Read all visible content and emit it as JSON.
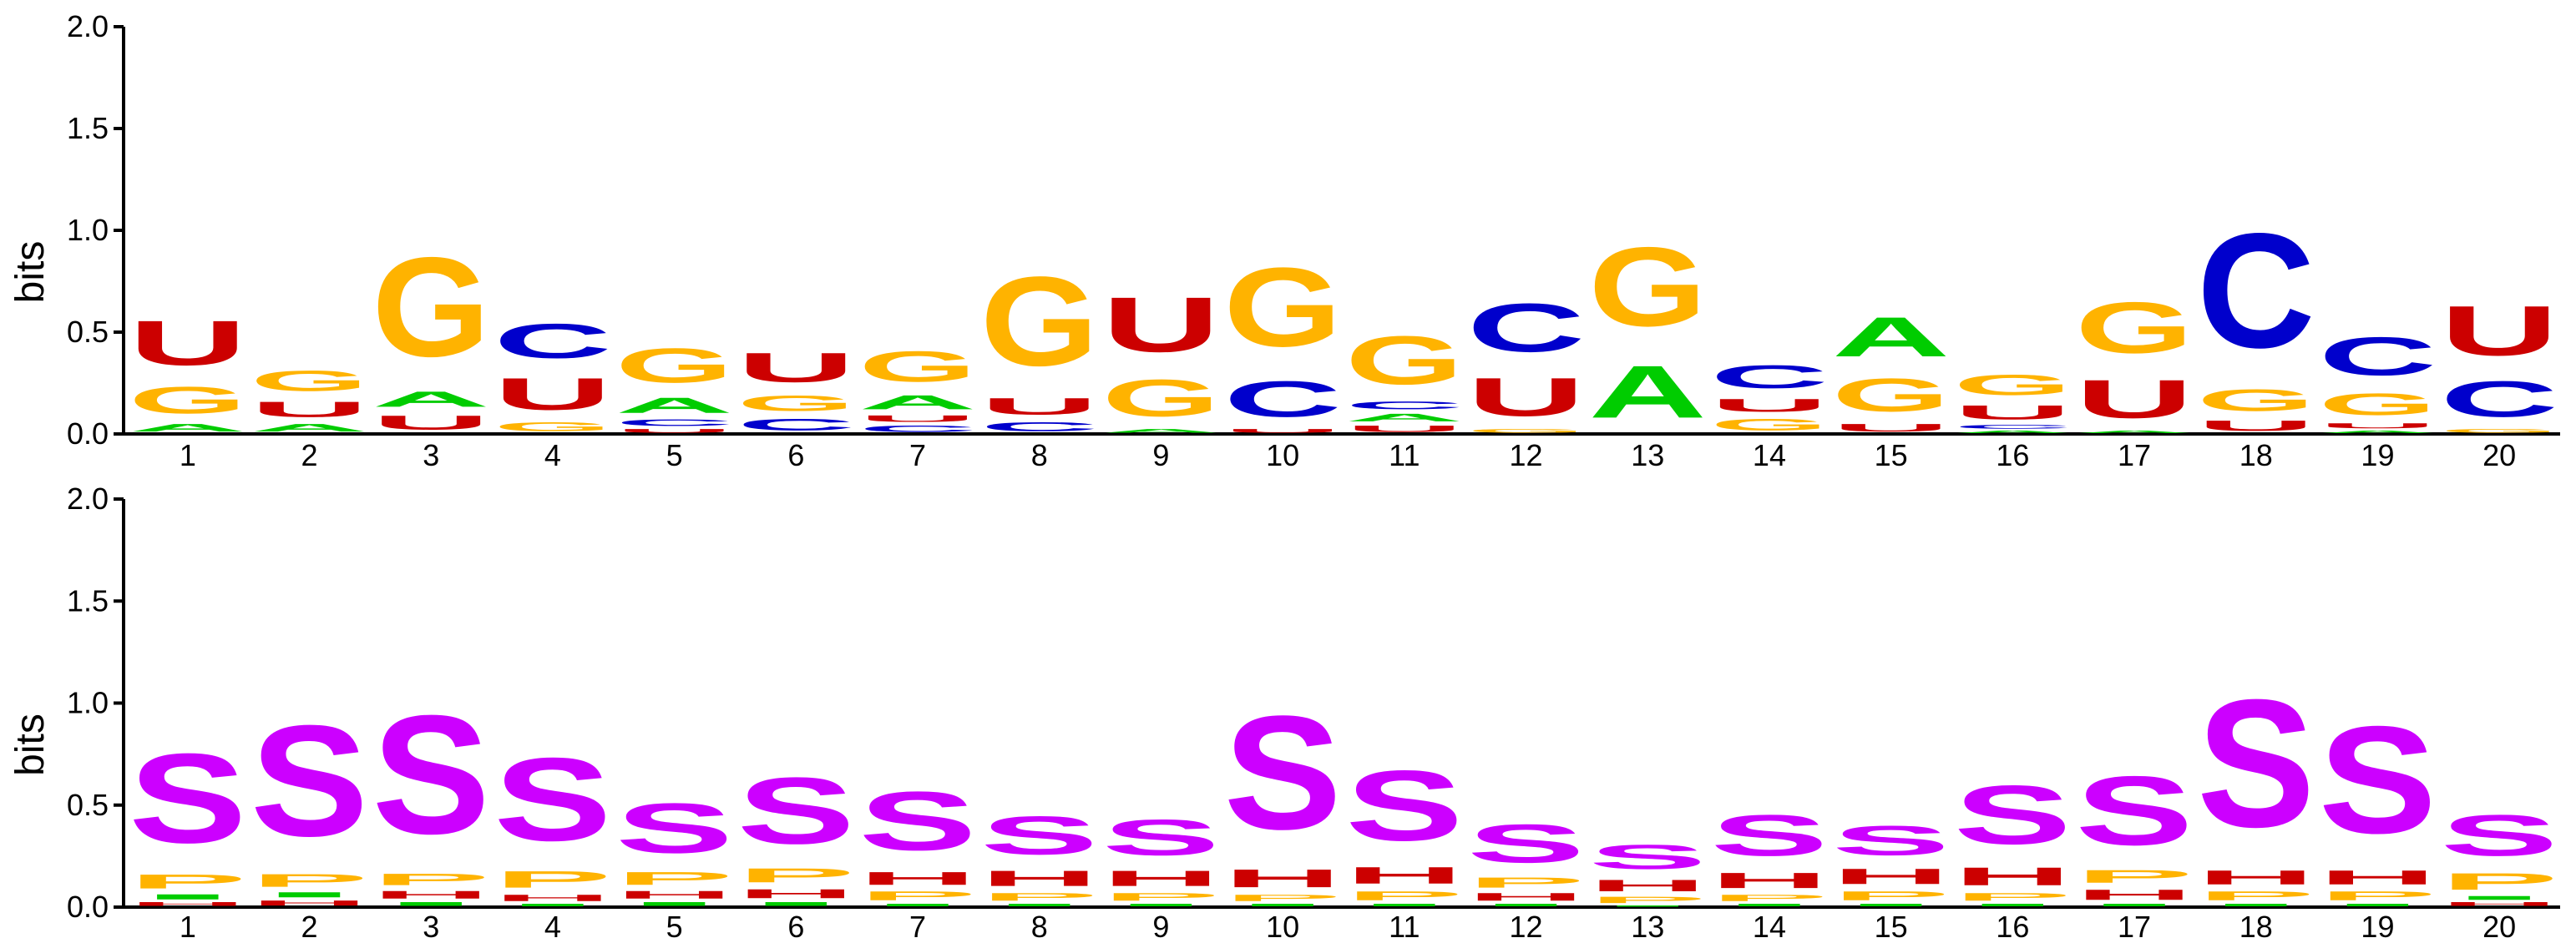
{
  "chart_data": [
    {
      "type": "sequence-logo",
      "ylabel": "bits",
      "ylim": [
        0,
        2.0
      ],
      "yticks": [
        "0.0",
        "0.5",
        "1.0",
        "1.5",
        "2.0"
      ],
      "positions": [
        "1",
        "2",
        "3",
        "4",
        "5",
        "6",
        "7",
        "8",
        "9",
        "10",
        "11",
        "12",
        "13",
        "14",
        "15",
        "16",
        "17",
        "18",
        "19",
        "20"
      ],
      "colors": {
        "A": "#00cc00",
        "C": "#0000cc",
        "G": "#ffb300",
        "U": "#cc0000"
      },
      "stacks": [
        [
          {
            "l": "A",
            "h": 0.06
          },
          {
            "l": "G",
            "h": 0.21
          },
          {
            "l": "U",
            "h": 0.35
          }
        ],
        [
          {
            "l": "A",
            "h": 0.06
          },
          {
            "l": "U",
            "h": 0.12
          },
          {
            "l": "G",
            "h": 0.16
          }
        ],
        [
          {
            "l": "U",
            "h": 0.11
          },
          {
            "l": "A",
            "h": 0.12
          },
          {
            "l": "G",
            "h": 0.78
          }
        ],
        [
          {
            "l": "G",
            "h": 0.07
          },
          {
            "l": "U",
            "h": 0.25
          },
          {
            "l": "C",
            "h": 0.27
          }
        ],
        [
          {
            "l": "U",
            "h": 0.03
          },
          {
            "l": "C",
            "h": 0.05
          },
          {
            "l": "A",
            "h": 0.12
          },
          {
            "l": "G",
            "h": 0.27
          }
        ],
        [
          {
            "l": "C",
            "h": 0.09
          },
          {
            "l": "G",
            "h": 0.12
          },
          {
            "l": "U",
            "h": 0.23
          }
        ],
        [
          {
            "l": "C",
            "h": 0.05
          },
          {
            "l": "U",
            "h": 0.05
          },
          {
            "l": "A",
            "h": 0.11
          },
          {
            "l": "G",
            "h": 0.24
          }
        ],
        [
          {
            "l": "C",
            "h": 0.07
          },
          {
            "l": "U",
            "h": 0.13
          },
          {
            "l": "G",
            "h": 0.7
          }
        ],
        [
          {
            "l": "A",
            "h": 0.03
          },
          {
            "l": "G",
            "h": 0.29
          },
          {
            "l": "U",
            "h": 0.43
          }
        ],
        [
          {
            "l": "U",
            "h": 0.03
          },
          {
            "l": "C",
            "h": 0.28
          },
          {
            "l": "G",
            "h": 0.62
          }
        ],
        [
          {
            "l": "U",
            "h": 0.05
          },
          {
            "l": "A",
            "h": 0.06
          },
          {
            "l": "C",
            "h": 0.06
          },
          {
            "l": "G",
            "h": 0.38
          }
        ],
        [
          {
            "l": "G",
            "h": 0.03
          },
          {
            "l": "U",
            "h": 0.3
          },
          {
            "l": "C",
            "h": 0.38
          }
        ],
        [
          {
            "l": "A",
            "h": 0.41
          },
          {
            "l": "G",
            "h": 0.62
          }
        ],
        [
          {
            "l": "G",
            "h": 0.09
          },
          {
            "l": "U",
            "h": 0.1
          },
          {
            "l": "C",
            "h": 0.18
          }
        ],
        [
          {
            "l": "U",
            "h": 0.06
          },
          {
            "l": "G",
            "h": 0.26
          },
          {
            "l": "A",
            "h": 0.31
          }
        ],
        [
          {
            "l": "A",
            "h": 0.02
          },
          {
            "l": "C",
            "h": 0.03
          },
          {
            "l": "U",
            "h": 0.11
          },
          {
            "l": "G",
            "h": 0.16
          }
        ],
        [
          {
            "l": "A",
            "h": 0.02
          },
          {
            "l": "U",
            "h": 0.3
          },
          {
            "l": "G",
            "h": 0.4
          }
        ],
        [
          {
            "l": "U",
            "h": 0.08
          },
          {
            "l": "G",
            "h": 0.17
          },
          {
            "l": "C",
            "h": 0.9
          }
        ],
        [
          {
            "l": "A",
            "h": 0.02
          },
          {
            "l": "U",
            "h": 0.04
          },
          {
            "l": "G",
            "h": 0.17
          },
          {
            "l": "C",
            "h": 0.3
          }
        ],
        [
          {
            "l": "G",
            "h": 0.03
          },
          {
            "l": "C",
            "h": 0.28
          },
          {
            "l": "U",
            "h": 0.39
          }
        ]
      ]
    },
    {
      "type": "sequence-logo",
      "ylabel": "bits",
      "ylim": [
        0,
        2.0
      ],
      "yticks": [
        "0.0",
        "0.5",
        "1.0",
        "1.5",
        "2.0"
      ],
      "positions": [
        "1",
        "2",
        "3",
        "4",
        "5",
        "6",
        "7",
        "8",
        "9",
        "10",
        "11",
        "12",
        "13",
        "14",
        "15",
        "16",
        "17",
        "18",
        "19",
        "20"
      ],
      "colors": {
        "S": "#cc00ff",
        "P": "#ffb300",
        "H": "#cc0000",
        "I": "#00cc00"
      },
      "stacks": [
        [
          {
            "l": "H",
            "h": 0.03
          },
          {
            "l": "I",
            "h": 0.04
          },
          {
            "l": "P",
            "h": 0.11
          },
          {
            "l": "S",
            "h": 0.7
          }
        ],
        [
          {
            "l": "H",
            "h": 0.04
          },
          {
            "l": "I",
            "h": 0.04
          },
          {
            "l": "P",
            "h": 0.1
          },
          {
            "l": "S",
            "h": 0.87
          }
        ],
        [
          {
            "l": "I",
            "h": 0.03
          },
          {
            "l": "H",
            "h": 0.06
          },
          {
            "l": "P",
            "h": 0.09
          },
          {
            "l": "S",
            "h": 0.93
          }
        ],
        [
          {
            "l": "I",
            "h": 0.02
          },
          {
            "l": "H",
            "h": 0.05
          },
          {
            "l": "P",
            "h": 0.13
          },
          {
            "l": "S",
            "h": 0.65
          }
        ],
        [
          {
            "l": "I",
            "h": 0.03
          },
          {
            "l": "H",
            "h": 0.06
          },
          {
            "l": "P",
            "h": 0.1
          },
          {
            "l": "S",
            "h": 0.39
          }
        ],
        [
          {
            "l": "I",
            "h": 0.03
          },
          {
            "l": "H",
            "h": 0.07
          },
          {
            "l": "P",
            "h": 0.11
          },
          {
            "l": "S",
            "h": 0.52
          }
        ],
        [
          {
            "l": "I",
            "h": 0.02
          },
          {
            "l": "P",
            "h": 0.07
          },
          {
            "l": "H",
            "h": 0.1
          },
          {
            "l": "S",
            "h": 0.46
          }
        ],
        [
          {
            "l": "I",
            "h": 0.02
          },
          {
            "l": "P",
            "h": 0.06
          },
          {
            "l": "H",
            "h": 0.12
          },
          {
            "l": "S",
            "h": 0.3
          }
        ],
        [
          {
            "l": "I",
            "h": 0.02
          },
          {
            "l": "P",
            "h": 0.06
          },
          {
            "l": "H",
            "h": 0.12
          },
          {
            "l": "S",
            "h": 0.28
          }
        ],
        [
          {
            "l": "I",
            "h": 0.02
          },
          {
            "l": "P",
            "h": 0.05
          },
          {
            "l": "H",
            "h": 0.14
          },
          {
            "l": "S",
            "h": 0.89
          }
        ],
        [
          {
            "l": "I",
            "h": 0.02
          },
          {
            "l": "P",
            "h": 0.07
          },
          {
            "l": "H",
            "h": 0.13
          },
          {
            "l": "S",
            "h": 0.55
          }
        ],
        [
          {
            "l": "I",
            "h": 0.02
          },
          {
            "l": "H",
            "h": 0.06
          },
          {
            "l": "P",
            "h": 0.08
          },
          {
            "l": "S",
            "h": 0.3
          }
        ],
        [
          {
            "l": "I",
            "h": 0.01
          },
          {
            "l": "P",
            "h": 0.05
          },
          {
            "l": "H",
            "h": 0.09
          },
          {
            "l": "S",
            "h": 0.19
          }
        ],
        [
          {
            "l": "I",
            "h": 0.02
          },
          {
            "l": "P",
            "h": 0.05
          },
          {
            "l": "H",
            "h": 0.12
          },
          {
            "l": "S",
            "h": 0.32
          }
        ],
        [
          {
            "l": "I",
            "h": 0.02
          },
          {
            "l": "P",
            "h": 0.07
          },
          {
            "l": "H",
            "h": 0.12
          },
          {
            "l": "S",
            "h": 0.23
          }
        ],
        [
          {
            "l": "I",
            "h": 0.02
          },
          {
            "l": "P",
            "h": 0.06
          },
          {
            "l": "H",
            "h": 0.14
          },
          {
            "l": "S",
            "h": 0.46
          }
        ],
        [
          {
            "l": "I",
            "h": 0.02
          },
          {
            "l": "H",
            "h": 0.08
          },
          {
            "l": "P",
            "h": 0.1
          },
          {
            "l": "S",
            "h": 0.54
          }
        ],
        [
          {
            "l": "I",
            "h": 0.02
          },
          {
            "l": "P",
            "h": 0.07
          },
          {
            "l": "H",
            "h": 0.11
          },
          {
            "l": "S",
            "h": 1.0
          }
        ],
        [
          {
            "l": "I",
            "h": 0.02
          },
          {
            "l": "P",
            "h": 0.07
          },
          {
            "l": "H",
            "h": 0.11
          },
          {
            "l": "S",
            "h": 0.84
          }
        ],
        [
          {
            "l": "H",
            "h": 0.03
          },
          {
            "l": "I",
            "h": 0.03
          },
          {
            "l": "P",
            "h": 0.13
          },
          {
            "l": "S",
            "h": 0.32
          }
        ]
      ]
    }
  ]
}
